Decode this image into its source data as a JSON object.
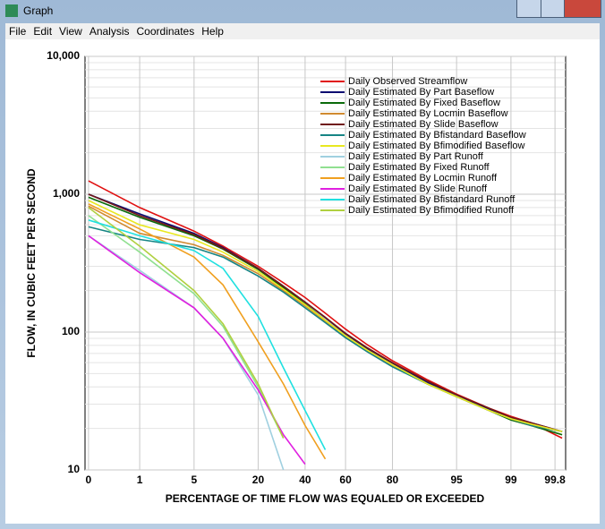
{
  "window": {
    "title": "Graph",
    "menu": [
      "File",
      "Edit",
      "View",
      "Analysis",
      "Coordinates",
      "Help"
    ]
  },
  "chart_data": {
    "type": "line",
    "x_label": "PERCENTAGE OF TIME FLOW WAS EQUALED OR EXCEEDED",
    "y_label": "FLOW, IN CUBIC FEET PER SECOND",
    "xscale": "probability",
    "yscale": "log",
    "grid": true,
    "xlim": [
      0.13,
      99.87
    ],
    "xticks": [
      {
        "value": 0.15,
        "label": "0"
      },
      1,
      5,
      20,
      40,
      60,
      80,
      95,
      99,
      99.8
    ],
    "ylim": [
      10,
      10000
    ],
    "yticks": [
      10,
      100,
      {
        "value": 1000,
        "label": "1,000"
      },
      {
        "value": 10000,
        "label": "10,000"
      }
    ],
    "x": [
      0.15,
      1,
      5,
      10,
      20,
      30,
      40,
      50,
      60,
      70,
      80,
      90,
      95,
      98,
      99,
      99.5,
      99.85
    ],
    "series": [
      {
        "name": "Daily Observed Streamflow",
        "color": "#e01010",
        "values": [
          1250,
          800,
          540,
          420,
          300,
          228,
          178,
          137,
          105,
          81,
          62,
          45,
          35.5,
          28,
          24.5,
          22,
          17
        ]
      },
      {
        "name": "Daily Estimated By Part Baseflow",
        "color": "#0a0a70",
        "values": [
          1000,
          720,
          520,
          410,
          290,
          215,
          165,
          127,
          97,
          76,
          59,
          43,
          35,
          27.5,
          24,
          22,
          19
        ]
      },
      {
        "name": "Daily Estimated By Fixed Baseflow",
        "color": "#0a6a0a",
        "values": [
          950,
          680,
          500,
          400,
          285,
          210,
          160,
          122,
          94,
          74,
          57,
          42,
          34,
          27,
          23,
          21,
          18
        ]
      },
      {
        "name": "Daily Estimated By Locmin Baseflow",
        "color": "#d08a30",
        "values": [
          820,
          520,
          430,
          360,
          265,
          200,
          155,
          120,
          93,
          73,
          57,
          42,
          34,
          27,
          23.5,
          21,
          19
        ]
      },
      {
        "name": "Daily Estimated By Slide Baseflow",
        "color": "#701818",
        "values": [
          1000,
          700,
          510,
          405,
          290,
          215,
          165,
          128,
          98,
          77,
          60,
          44,
          35,
          28,
          24,
          22,
          19
        ]
      },
      {
        "name": "Daily Estimated By Bfistandard Baseflow",
        "color": "#168484",
        "values": [
          580,
          470,
          410,
          350,
          255,
          195,
          150,
          117,
          91,
          72,
          56,
          42,
          34,
          27,
          23.5,
          21,
          19
        ]
      },
      {
        "name": "Daily Estimated By Bfimodified Baseflow",
        "color": "#e8e820",
        "values": [
          900,
          600,
          470,
          380,
          275,
          205,
          158,
          122,
          94,
          74,
          58,
          42,
          34,
          27,
          23.5,
          21.5,
          19
        ]
      },
      {
        "name": "Daily Estimated By Part Runoff",
        "color": "#a0d0e0",
        "values": [
          500,
          280,
          150,
          90,
          35,
          10,
          null,
          null,
          null,
          null,
          null,
          null,
          null,
          null,
          null,
          null,
          null
        ]
      },
      {
        "name": "Daily Estimated By Fixed Runoff",
        "color": "#90e090",
        "values": [
          700,
          380,
          190,
          110,
          40,
          17,
          null,
          null,
          null,
          null,
          null,
          null,
          null,
          null,
          null,
          null,
          null
        ]
      },
      {
        "name": "Daily Estimated By Locmin Runoff",
        "color": "#f0a020",
        "values": [
          850,
          560,
          350,
          220,
          85,
          42,
          21,
          12,
          null,
          null,
          null,
          null,
          null,
          null,
          null,
          null,
          null
        ]
      },
      {
        "name": "Daily Estimated By Slide Runoff",
        "color": "#e020e0",
        "values": [
          500,
          270,
          150,
          90,
          38,
          18,
          11,
          null,
          null,
          null,
          null,
          null,
          null,
          null,
          null,
          null,
          null
        ]
      },
      {
        "name": "Daily Estimated By Bfistandard Runoff",
        "color": "#20e0e0",
        "values": [
          650,
          500,
          390,
          290,
          130,
          55,
          27,
          14,
          null,
          null,
          null,
          null,
          null,
          null,
          null,
          null,
          null
        ]
      },
      {
        "name": "Daily Estimated By Bfimodified Runoff",
        "color": "#b0d040",
        "values": [
          800,
          420,
          200,
          115,
          42,
          17,
          null,
          null,
          null,
          null,
          null,
          null,
          null,
          null,
          null,
          null,
          null
        ]
      }
    ]
  }
}
